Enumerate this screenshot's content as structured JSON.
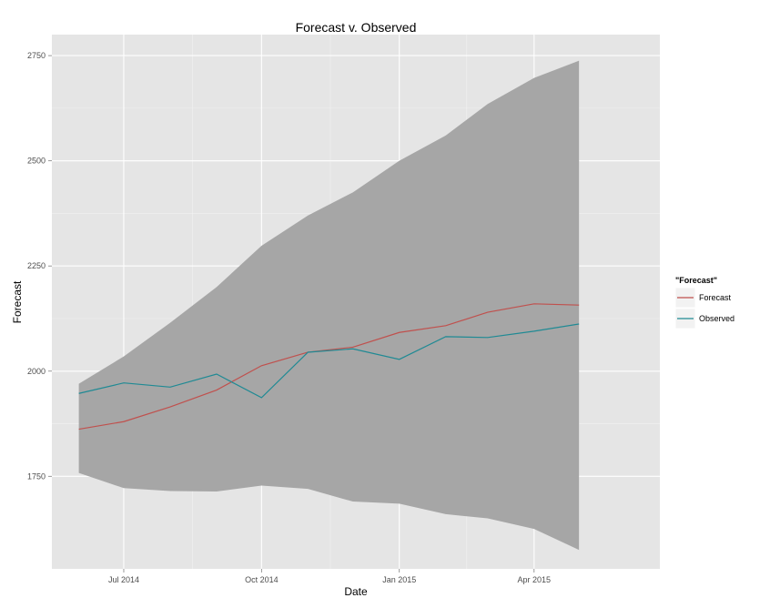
{
  "chart_data": {
    "type": "line",
    "title": "Forecast v. Observed",
    "xlabel": "Date",
    "ylabel": "Forecast",
    "ylim": [
      1530,
      2800
    ],
    "xlim": [
      "2014-05-14",
      "2015-06-24"
    ],
    "grid": true,
    "legend_position": "right",
    "legend_title": "\"Forecast\"",
    "x_ticks": [
      {
        "date": "2014-07-01",
        "label": "Jul 2014"
      },
      {
        "date": "2014-10-01",
        "label": "Oct 2014"
      },
      {
        "date": "2015-01-01",
        "label": "Jan 2015"
      },
      {
        "date": "2015-04-01",
        "label": "Apr 2015"
      }
    ],
    "y_ticks": [
      1750,
      2000,
      2250,
      2500,
      2750
    ],
    "x": [
      "2014-06-01",
      "2014-07-01",
      "2014-08-01",
      "2014-09-01",
      "2014-10-01",
      "2014-11-01",
      "2014-12-01",
      "2015-01-01",
      "2015-02-01",
      "2015-03-01",
      "2015-04-01",
      "2015-05-01"
    ],
    "band": {
      "upper": [
        1970,
        2035,
        2115,
        2200,
        2298,
        2370,
        2425,
        2500,
        2560,
        2635,
        2697,
        2738
      ],
      "lower": [
        1758,
        1722,
        1715,
        1714,
        1728,
        1720,
        1690,
        1685,
        1660,
        1650,
        1625,
        1575
      ]
    },
    "series": [
      {
        "name": "Forecast",
        "color": "#c0504d",
        "values": [
          1862,
          1880,
          1915,
          1955,
          2013,
          2045,
          2057,
          2092,
          2108,
          2140,
          2160,
          2157
        ]
      },
      {
        "name": "Observed",
        "color": "#1f8a94",
        "values": [
          1947,
          1972,
          1962,
          1993,
          1937,
          2045,
          2053,
          2028,
          2082,
          2080,
          2095,
          2112
        ]
      }
    ],
    "colors": {
      "panel": "#e5e5e5",
      "band": "#a6a6a6",
      "grid": "#ffffff"
    }
  }
}
